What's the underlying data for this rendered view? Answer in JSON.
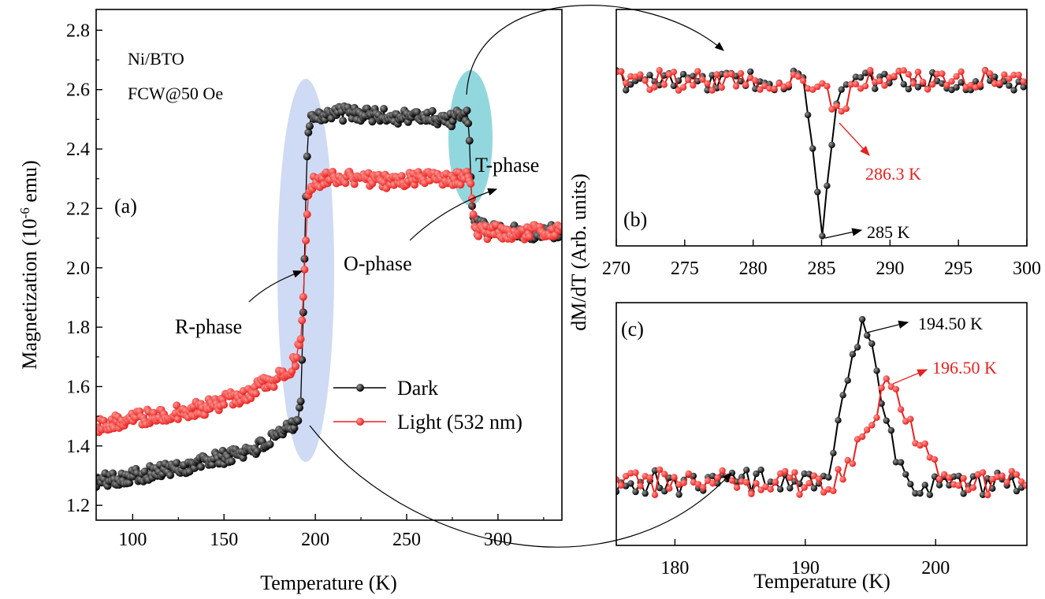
{
  "chart_data": [
    {
      "panel": "(a)",
      "type": "line",
      "xlabel": "Temperature (K)",
      "ylabel_base": "Magnetization (10",
      "ylabel_sup": "-6",
      "ylabel_unit": " emu)",
      "xlim": [
        80,
        335
      ],
      "ylim": [
        1.15,
        2.87
      ],
      "xticks": [
        100,
        150,
        200,
        250,
        300
      ],
      "yticks": [
        1.2,
        1.4,
        1.6,
        1.8,
        2.0,
        2.2,
        2.4,
        2.6,
        2.8
      ],
      "tick_labels_x": [
        "100",
        "150",
        "200",
        "250",
        "300"
      ],
      "tick_labels_y": [
        "1.2",
        "1.4",
        "1.6",
        "1.8",
        "2.0",
        "2.2",
        "2.4",
        "2.6",
        "2.8"
      ],
      "sample_text": "Ni/BTO",
      "mode_text": "FCW@50 Oe",
      "phase_labels": [
        "R-phase",
        "O-phase",
        "T-phase"
      ],
      "legend_position": "bottom-right",
      "series": [
        {
          "name": "Dark",
          "color": "#000000",
          "points": [
            [
              80,
              1.28
            ],
            [
              90,
              1.29
            ],
            [
              100,
              1.3
            ],
            [
              110,
              1.31
            ],
            [
              120,
              1.32
            ],
            [
              130,
              1.33
            ],
            [
              140,
              1.35
            ],
            [
              150,
              1.36
            ],
            [
              160,
              1.38
            ],
            [
              170,
              1.4
            ],
            [
              180,
              1.43
            ],
            [
              185,
              1.46
            ],
            [
              190,
              1.49
            ],
            [
              192,
              1.55
            ],
            [
              193,
              1.75
            ],
            [
              194,
              2.0
            ],
            [
              195,
              2.3
            ],
            [
              196,
              2.45
            ],
            [
              198,
              2.51
            ],
            [
              205,
              2.52
            ],
            [
              220,
              2.52
            ],
            [
              240,
              2.51
            ],
            [
              260,
              2.51
            ],
            [
              275,
              2.5
            ],
            [
              282,
              2.52
            ],
            [
              284,
              2.5
            ],
            [
              285,
              2.32
            ],
            [
              286,
              2.18
            ],
            [
              288,
              2.14
            ],
            [
              300,
              2.12
            ],
            [
              320,
              2.12
            ],
            [
              335,
              2.12
            ]
          ]
        },
        {
          "name": "Light (532 nm)",
          "color": "#e8211e",
          "points": [
            [
              80,
              1.47
            ],
            [
              90,
              1.48
            ],
            [
              100,
              1.49
            ],
            [
              110,
              1.5
            ],
            [
              120,
              1.51
            ],
            [
              130,
              1.52
            ],
            [
              140,
              1.53
            ],
            [
              150,
              1.55
            ],
            [
              160,
              1.57
            ],
            [
              170,
              1.6
            ],
            [
              180,
              1.63
            ],
            [
              186,
              1.66
            ],
            [
              190,
              1.7
            ],
            [
              192,
              1.76
            ],
            [
              193,
              1.85
            ],
            [
              194,
              1.98
            ],
            [
              195,
              2.12
            ],
            [
              196,
              2.24
            ],
            [
              198,
              2.28
            ],
            [
              205,
              2.3
            ],
            [
              220,
              2.3
            ],
            [
              240,
              2.29
            ],
            [
              260,
              2.3
            ],
            [
              275,
              2.3
            ],
            [
              283,
              2.3
            ],
            [
              285,
              2.29
            ],
            [
              286,
              2.22
            ],
            [
              287,
              2.14
            ],
            [
              290,
              2.12
            ],
            [
              300,
              2.12
            ],
            [
              320,
              2.12
            ],
            [
              335,
              2.12
            ]
          ]
        }
      ]
    },
    {
      "panel": "(b)",
      "type": "line",
      "xlabel": "",
      "ylabel": "dM/dT (Arb. units)",
      "xlim": [
        270,
        300
      ],
      "xticks": [
        270,
        275,
        280,
        285,
        290,
        295,
        300
      ],
      "tick_labels_x": [
        "270",
        "275",
        "280",
        "285",
        "290",
        "295",
        "300"
      ],
      "peaks": [
        {
          "series": "Dark",
          "x": 285,
          "label": "285 K",
          "color": "#000000"
        },
        {
          "series": "Light (532 nm)",
          "x": 286.3,
          "label": "286.3 K",
          "color": "#e8211e"
        }
      ]
    },
    {
      "panel": "(c)",
      "type": "line",
      "xlabel": "Temperature (K)",
      "xlim": [
        175.5,
        207
      ],
      "xticks": [
        180,
        190,
        200
      ],
      "tick_labels_x": [
        "180",
        "190",
        "200"
      ],
      "peaks": [
        {
          "series": "Dark",
          "x": 194.5,
          "label": "194.50 K",
          "color": "#000000"
        },
        {
          "series": "Light (532 nm)",
          "x": 196.5,
          "label": "196.50 K",
          "color": "#e8211e"
        }
      ]
    }
  ]
}
